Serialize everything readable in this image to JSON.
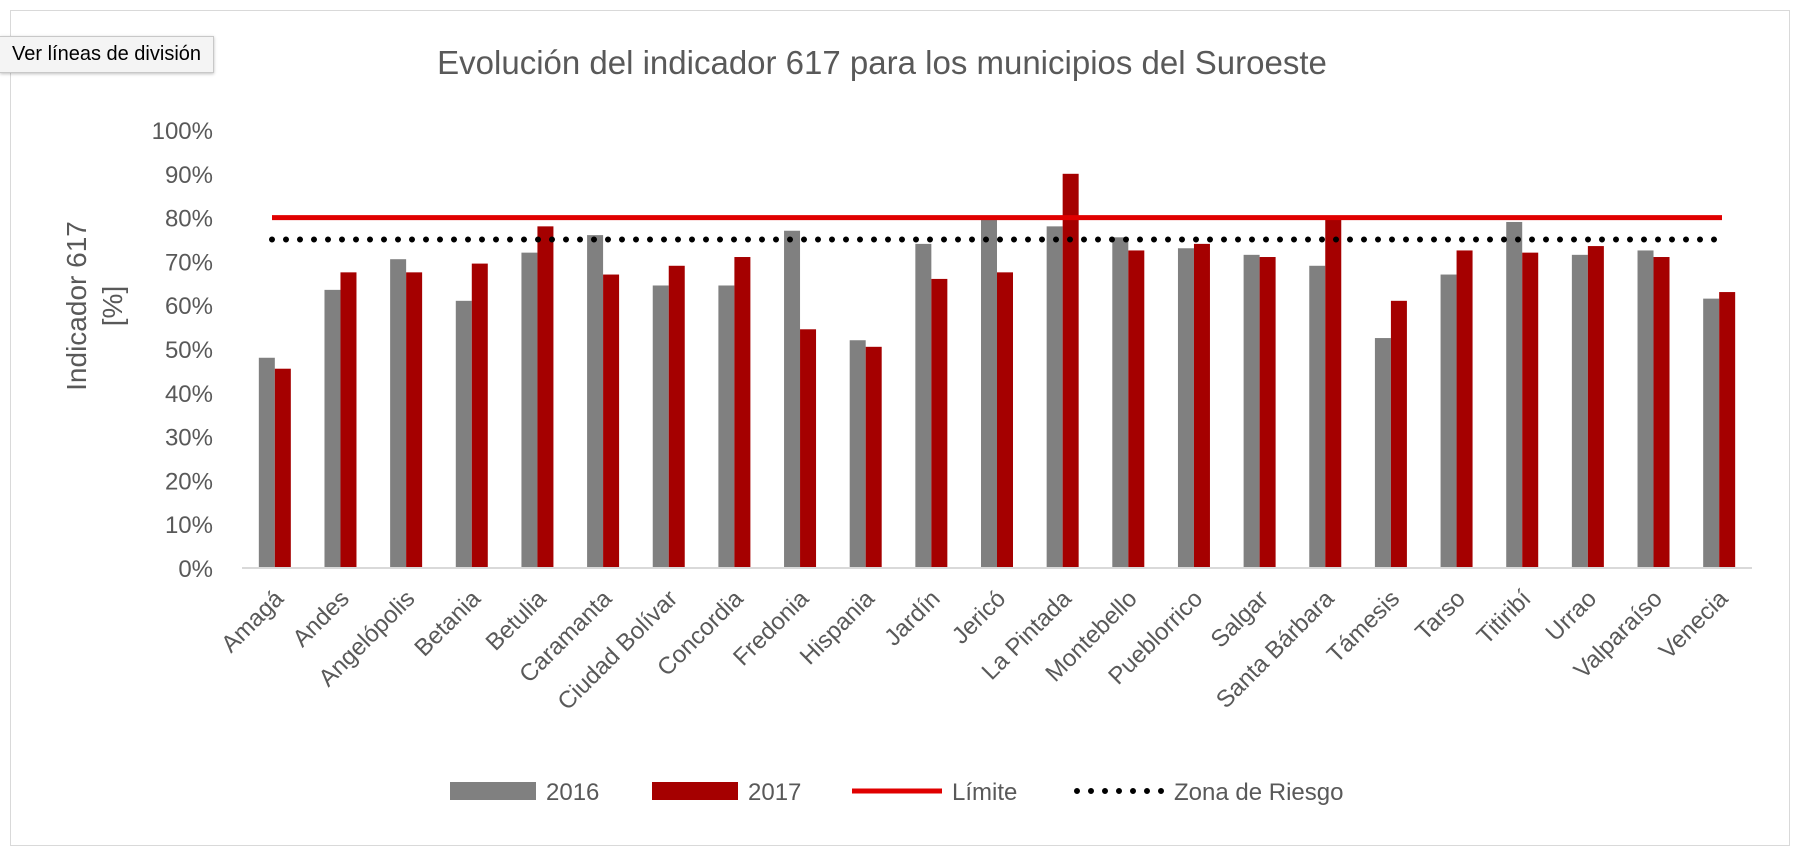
{
  "ui": {
    "gridline_button_label": "Ver líneas de división"
  },
  "chart_data": {
    "type": "bar",
    "title": "Evolución del indicador 617 para los municipios del Suroeste",
    "ylabel_line1": "Indicador 617",
    "ylabel_line2": "[%]",
    "ylim": [
      0,
      100
    ],
    "yticks": [
      "0%",
      "10%",
      "20%",
      "30%",
      "40%",
      "50%",
      "60%",
      "70%",
      "80%",
      "90%",
      "100%"
    ],
    "grid": false,
    "legend_position": "bottom",
    "categories": [
      "Amagá",
      "Andes",
      "Angelópolis",
      "Betania",
      "Betulia",
      "Caramanta",
      "Ciudad Bolívar",
      "Concordia",
      "Fredonia",
      "Hispania",
      "Jardín",
      "Jericó",
      "La Pintada",
      "Montebello",
      "Pueblorrico",
      "Salgar",
      "Santa Bárbara",
      "Támesis",
      "Tarso",
      "Titiribí",
      "Urrao",
      "Valparaíso",
      "Venecia"
    ],
    "series": [
      {
        "name": "2016",
        "color": "#808080",
        "values": [
          48,
          63.5,
          70.5,
          61,
          72,
          76,
          64.5,
          64.5,
          77,
          52,
          74,
          80,
          78,
          75.5,
          73,
          71.5,
          69,
          52.5,
          67,
          79,
          71.5,
          72.5,
          61.5
        ]
      },
      {
        "name": "2017",
        "color": "#a50000",
        "values": [
          45.5,
          67.5,
          67.5,
          69.5,
          78,
          67,
          69,
          71,
          54.5,
          50.5,
          66,
          67.5,
          90,
          72.5,
          74,
          71,
          80,
          61,
          72.5,
          72,
          73.5,
          71,
          63
        ]
      }
    ],
    "reference_lines": [
      {
        "name": "Límite",
        "value": 80,
        "color": "#e00000",
        "style": "solid"
      },
      {
        "name": "Zona de Riesgo",
        "value": 75,
        "color": "#000000",
        "style": "dotted"
      }
    ]
  }
}
